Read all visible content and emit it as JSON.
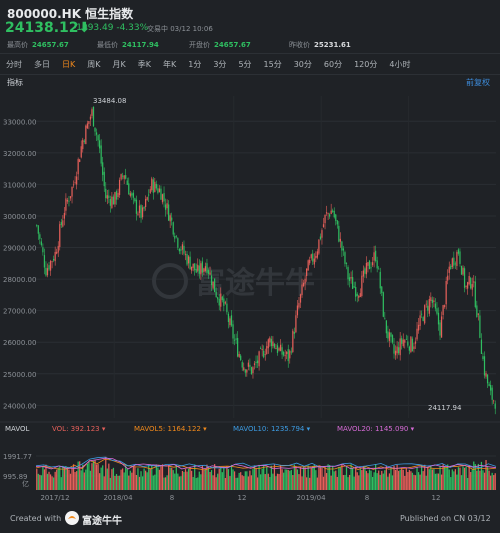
{
  "header": {
    "symbol_name": "800000.HK 恒生指数",
    "price": "24138.12",
    "arrow": "⬇",
    "change": "-1093.49 -4.33%",
    "trade_status": "交易中 03/12 10:06"
  },
  "stats": [
    {
      "label": "最高价",
      "value": "24657.67"
    },
    {
      "label": "最低价",
      "value": "24117.94"
    },
    {
      "label": "开盘价",
      "value": "24657.67"
    },
    {
      "label": "昨收价",
      "value": "25231.61"
    }
  ],
  "tabs": [
    "分时",
    "多日",
    "日K",
    "周K",
    "月K",
    "季K",
    "年K",
    "1分",
    "3分",
    "5分",
    "15分",
    "30分",
    "60分",
    "120分",
    "4小时"
  ],
  "active_tab": "日K",
  "indicator_label": "指标",
  "adjust_label": "前复权",
  "chart_data": {
    "type": "candlestick",
    "y_ticks": [
      "33000.00",
      "32000.00",
      "31000.00",
      "30000.00",
      "29000.00",
      "28000.00",
      "27000.00",
      "26000.00",
      "25000.00",
      "24000.00"
    ],
    "ylim": [
      23600,
      33800
    ],
    "high_label": "33484.08",
    "low_label": "24117.94",
    "close_path": [
      [
        0,
        29700
      ],
      [
        0.02,
        28300
      ],
      [
        0.04,
        28800
      ],
      [
        0.06,
        30200
      ],
      [
        0.08,
        31000
      ],
      [
        0.1,
        32400
      ],
      [
        0.12,
        33300
      ],
      [
        0.135,
        32300
      ],
      [
        0.15,
        30600
      ],
      [
        0.17,
        30500
      ],
      [
        0.19,
        31400
      ],
      [
        0.21,
        30400
      ],
      [
        0.23,
        30000
      ],
      [
        0.25,
        31000
      ],
      [
        0.27,
        30800
      ],
      [
        0.29,
        30000
      ],
      [
        0.31,
        29100
      ],
      [
        0.33,
        28600
      ],
      [
        0.35,
        28200
      ],
      [
        0.37,
        28500
      ],
      [
        0.39,
        27600
      ],
      [
        0.41,
        27100
      ],
      [
        0.43,
        26100
      ],
      [
        0.45,
        25300
      ],
      [
        0.47,
        25100
      ],
      [
        0.49,
        25600
      ],
      [
        0.51,
        26100
      ],
      [
        0.53,
        25700
      ],
      [
        0.55,
        25500
      ],
      [
        0.57,
        27100
      ],
      [
        0.59,
        28300
      ],
      [
        0.61,
        28900
      ],
      [
        0.63,
        30000
      ],
      [
        0.645,
        30200
      ],
      [
        0.66,
        29300
      ],
      [
        0.68,
        28000
      ],
      [
        0.7,
        27600
      ],
      [
        0.72,
        28300
      ],
      [
        0.74,
        28800
      ],
      [
        0.76,
        26500
      ],
      [
        0.78,
        25600
      ],
      [
        0.8,
        26100
      ],
      [
        0.82,
        25900
      ],
      [
        0.84,
        26800
      ],
      [
        0.86,
        27400
      ],
      [
        0.88,
        26400
      ],
      [
        0.9,
        28400
      ],
      [
        0.92,
        28900
      ],
      [
        0.935,
        27700
      ],
      [
        0.95,
        28000
      ],
      [
        0.965,
        26500
      ],
      [
        0.975,
        25200
      ],
      [
        0.99,
        24300
      ],
      [
        1,
        24138
      ]
    ],
    "volume": {
      "title": "MAVOL",
      "series": [
        {
          "name": "VOL: 392.123",
          "color": "#e6605a"
        },
        {
          "name": "MAVOL5: 1164.122",
          "color": "#f28a1c"
        },
        {
          "name": "MAVOL10: 1235.794",
          "color": "#3d9ce3"
        },
        {
          "name": "MAVOL20: 1145.090",
          "color": "#d66bd6"
        }
      ],
      "y_ticks": [
        "1991.77",
        "995.89",
        "亿"
      ]
    },
    "x_ticks": [
      "2017/12",
      "2018/04",
      "8",
      "12",
      "2019/04",
      "8",
      "12"
    ]
  },
  "footer": {
    "created_with": "Created with",
    "brand": "富途牛牛",
    "published": "Published on CN 03/12"
  },
  "watermark": "富途牛牛",
  "colors": {
    "up": "#e6605a",
    "down": "#2fbf61",
    "accent": "#f28a1c",
    "link": "#3d8bd9"
  }
}
